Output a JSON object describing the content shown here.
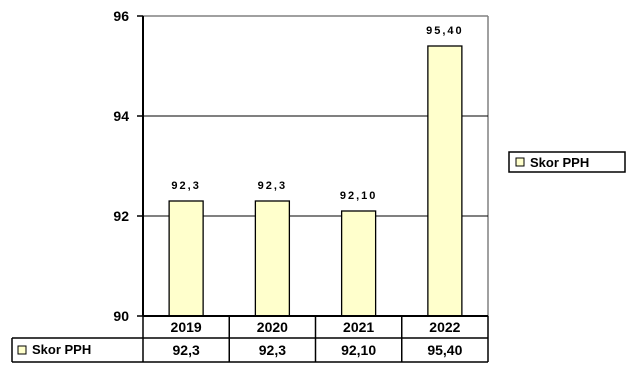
{
  "chart_data": {
    "type": "bar",
    "categories": [
      "2019",
      "2020",
      "2021",
      "2022"
    ],
    "series": [
      {
        "name": "Skor PPH",
        "values": [
          92.3,
          92.3,
          92.1,
          95.4
        ],
        "labels": [
          "92,3",
          "92,3",
          "92,10",
          "95,40"
        ]
      }
    ],
    "yticks": [
      "90",
      "92",
      "94",
      "96"
    ],
    "ylim": [
      90,
      96
    ],
    "grid": true,
    "legend": "right",
    "data_table": true,
    "colors": {
      "bar_fill": "#ffffcc",
      "bar_stroke": "#000000",
      "gridline": "#000000",
      "plot_border": "#808080"
    }
  }
}
